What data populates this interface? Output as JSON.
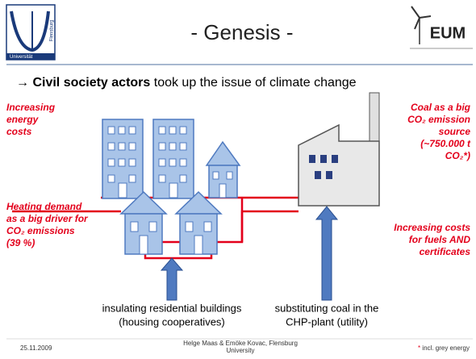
{
  "header": {
    "title": "- Genesis -",
    "logo_left": [
      "Universität",
      "Flensburg"
    ],
    "logo_right": "EUM"
  },
  "headline": {
    "arrow": "→ ",
    "bold": "Civil society actors",
    "rest": " took up the issue of climate change"
  },
  "annotations": {
    "left_top": [
      "Increasing",
      "energy",
      "costs"
    ],
    "left_middle": [
      "Heating demand",
      "as a big driver for",
      "CO₂ emissions",
      "(39 %)"
    ],
    "right_top": [
      "Coal as a big",
      "CO₂ emission",
      "source",
      "(~750.000 t",
      "CO₂*)"
    ],
    "right_bottom": [
      "Increasing costs",
      "for fuels AND",
      "certificates"
    ]
  },
  "captions": {
    "left": [
      "insulating residential buildings",
      "(housing cooperatives)"
    ],
    "right": [
      "substituting coal in the",
      "CHP-plant (utility)"
    ]
  },
  "footer": {
    "date": "25.11.2009",
    "authors": [
      "Helge Maas & Emöke Kovac, Flensburg",
      "University"
    ],
    "star": "*",
    "note": " incl. grey energy"
  }
}
